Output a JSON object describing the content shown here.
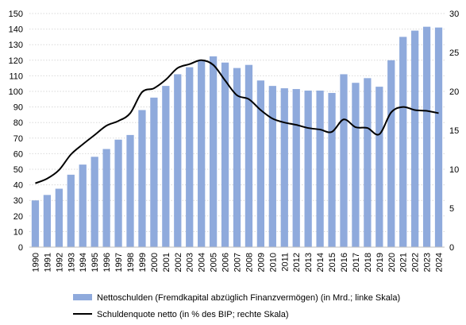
{
  "chart_data": {
    "type": "bar",
    "title": "",
    "xlabel": "",
    "ylabel": "",
    "categories": [
      "1990",
      "1991",
      "1992",
      "1993",
      "1994",
      "1995",
      "1996",
      "1997",
      "1998",
      "1999",
      "2000",
      "2001",
      "2002",
      "2003",
      "2004",
      "2005",
      "2006",
      "2007",
      "2008",
      "2009",
      "2010",
      "2011",
      "2012",
      "2013",
      "2014",
      "2015",
      "2016",
      "2017",
      "2018",
      "2019",
      "2020",
      "2021",
      "2022",
      "2023",
      "2024"
    ],
    "ylim_left": [
      0,
      150
    ],
    "ylim_right": [
      0,
      30
    ],
    "left_ticks": [
      0,
      10,
      20,
      30,
      40,
      50,
      60,
      70,
      80,
      90,
      100,
      110,
      120,
      130,
      140,
      150
    ],
    "right_ticks": [
      0,
      5,
      10,
      15,
      20,
      25,
      30
    ],
    "grid": true,
    "legend_position": "bottom",
    "series": [
      {
        "name": "Nettoschulden (Fremdkapital abzüglich Finanzvermögen) (in Mrd.; linke Skala)",
        "type": "bar",
        "axis": "left",
        "color": "#8faadc",
        "values": [
          30,
          33.5,
          37.5,
          46.5,
          53,
          58,
          63,
          69,
          72,
          88,
          96,
          103.5,
          111,
          115.5,
          119.5,
          122.5,
          118.5,
          115,
          117,
          107,
          103.5,
          102,
          101.5,
          100.5,
          100.5,
          99,
          111,
          105.5,
          108.5,
          103,
          120,
          135,
          139,
          141.5,
          141
        ]
      },
      {
        "name": "Schuldenquote netto (in % des BIP; rechte Skala)",
        "type": "line",
        "axis": "right",
        "color": "#000000",
        "values": [
          8.2,
          8.8,
          9.9,
          11.9,
          13.2,
          14.4,
          15.6,
          16.2,
          17.2,
          19.9,
          20.4,
          21.5,
          23.0,
          23.5,
          24.0,
          23.4,
          21.4,
          19.5,
          19.0,
          17.6,
          16.5,
          16.0,
          15.7,
          15.3,
          15.1,
          14.8,
          16.4,
          15.4,
          15.3,
          14.5,
          17.3,
          18.0,
          17.6,
          17.5,
          17.2
        ]
      }
    ]
  }
}
